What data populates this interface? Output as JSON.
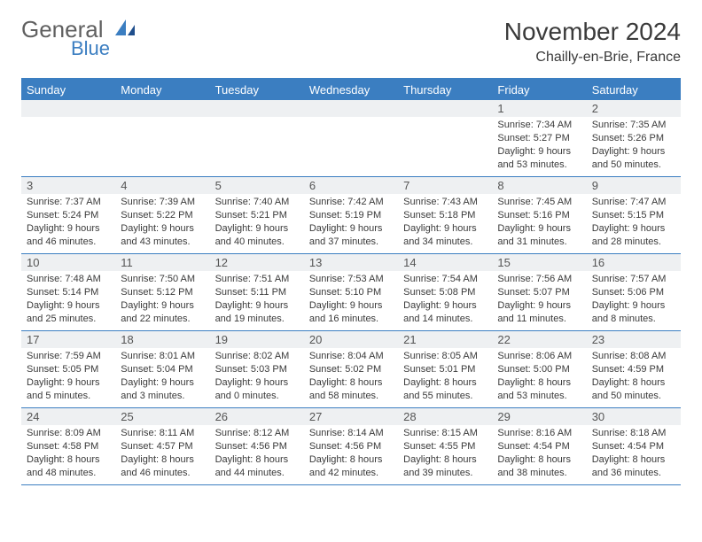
{
  "brand": {
    "line1": "General",
    "line2": "Blue"
  },
  "title": "November 2024",
  "location": "Chailly-en-Brie, France",
  "colors": {
    "accent": "#3b7ec1",
    "header_bg": "#3b7ec1",
    "header_text": "#ffffff",
    "daynum_bg": "#eef0f2",
    "text": "#3a3a3a",
    "rule": "#3b7ec1"
  },
  "dow": [
    "Sunday",
    "Monday",
    "Tuesday",
    "Wednesday",
    "Thursday",
    "Friday",
    "Saturday"
  ],
  "weeks": [
    [
      {
        "n": "",
        "sunrise": "",
        "sunset": "",
        "daylight": ""
      },
      {
        "n": "",
        "sunrise": "",
        "sunset": "",
        "daylight": ""
      },
      {
        "n": "",
        "sunrise": "",
        "sunset": "",
        "daylight": ""
      },
      {
        "n": "",
        "sunrise": "",
        "sunset": "",
        "daylight": ""
      },
      {
        "n": "",
        "sunrise": "",
        "sunset": "",
        "daylight": ""
      },
      {
        "n": "1",
        "sunrise": "Sunrise: 7:34 AM",
        "sunset": "Sunset: 5:27 PM",
        "daylight": "Daylight: 9 hours and 53 minutes."
      },
      {
        "n": "2",
        "sunrise": "Sunrise: 7:35 AM",
        "sunset": "Sunset: 5:26 PM",
        "daylight": "Daylight: 9 hours and 50 minutes."
      }
    ],
    [
      {
        "n": "3",
        "sunrise": "Sunrise: 7:37 AM",
        "sunset": "Sunset: 5:24 PM",
        "daylight": "Daylight: 9 hours and 46 minutes."
      },
      {
        "n": "4",
        "sunrise": "Sunrise: 7:39 AM",
        "sunset": "Sunset: 5:22 PM",
        "daylight": "Daylight: 9 hours and 43 minutes."
      },
      {
        "n": "5",
        "sunrise": "Sunrise: 7:40 AM",
        "sunset": "Sunset: 5:21 PM",
        "daylight": "Daylight: 9 hours and 40 minutes."
      },
      {
        "n": "6",
        "sunrise": "Sunrise: 7:42 AM",
        "sunset": "Sunset: 5:19 PM",
        "daylight": "Daylight: 9 hours and 37 minutes."
      },
      {
        "n": "7",
        "sunrise": "Sunrise: 7:43 AM",
        "sunset": "Sunset: 5:18 PM",
        "daylight": "Daylight: 9 hours and 34 minutes."
      },
      {
        "n": "8",
        "sunrise": "Sunrise: 7:45 AM",
        "sunset": "Sunset: 5:16 PM",
        "daylight": "Daylight: 9 hours and 31 minutes."
      },
      {
        "n": "9",
        "sunrise": "Sunrise: 7:47 AM",
        "sunset": "Sunset: 5:15 PM",
        "daylight": "Daylight: 9 hours and 28 minutes."
      }
    ],
    [
      {
        "n": "10",
        "sunrise": "Sunrise: 7:48 AM",
        "sunset": "Sunset: 5:14 PM",
        "daylight": "Daylight: 9 hours and 25 minutes."
      },
      {
        "n": "11",
        "sunrise": "Sunrise: 7:50 AM",
        "sunset": "Sunset: 5:12 PM",
        "daylight": "Daylight: 9 hours and 22 minutes."
      },
      {
        "n": "12",
        "sunrise": "Sunrise: 7:51 AM",
        "sunset": "Sunset: 5:11 PM",
        "daylight": "Daylight: 9 hours and 19 minutes."
      },
      {
        "n": "13",
        "sunrise": "Sunrise: 7:53 AM",
        "sunset": "Sunset: 5:10 PM",
        "daylight": "Daylight: 9 hours and 16 minutes."
      },
      {
        "n": "14",
        "sunrise": "Sunrise: 7:54 AM",
        "sunset": "Sunset: 5:08 PM",
        "daylight": "Daylight: 9 hours and 14 minutes."
      },
      {
        "n": "15",
        "sunrise": "Sunrise: 7:56 AM",
        "sunset": "Sunset: 5:07 PM",
        "daylight": "Daylight: 9 hours and 11 minutes."
      },
      {
        "n": "16",
        "sunrise": "Sunrise: 7:57 AM",
        "sunset": "Sunset: 5:06 PM",
        "daylight": "Daylight: 9 hours and 8 minutes."
      }
    ],
    [
      {
        "n": "17",
        "sunrise": "Sunrise: 7:59 AM",
        "sunset": "Sunset: 5:05 PM",
        "daylight": "Daylight: 9 hours and 5 minutes."
      },
      {
        "n": "18",
        "sunrise": "Sunrise: 8:01 AM",
        "sunset": "Sunset: 5:04 PM",
        "daylight": "Daylight: 9 hours and 3 minutes."
      },
      {
        "n": "19",
        "sunrise": "Sunrise: 8:02 AM",
        "sunset": "Sunset: 5:03 PM",
        "daylight": "Daylight: 9 hours and 0 minutes."
      },
      {
        "n": "20",
        "sunrise": "Sunrise: 8:04 AM",
        "sunset": "Sunset: 5:02 PM",
        "daylight": "Daylight: 8 hours and 58 minutes."
      },
      {
        "n": "21",
        "sunrise": "Sunrise: 8:05 AM",
        "sunset": "Sunset: 5:01 PM",
        "daylight": "Daylight: 8 hours and 55 minutes."
      },
      {
        "n": "22",
        "sunrise": "Sunrise: 8:06 AM",
        "sunset": "Sunset: 5:00 PM",
        "daylight": "Daylight: 8 hours and 53 minutes."
      },
      {
        "n": "23",
        "sunrise": "Sunrise: 8:08 AM",
        "sunset": "Sunset: 4:59 PM",
        "daylight": "Daylight: 8 hours and 50 minutes."
      }
    ],
    [
      {
        "n": "24",
        "sunrise": "Sunrise: 8:09 AM",
        "sunset": "Sunset: 4:58 PM",
        "daylight": "Daylight: 8 hours and 48 minutes."
      },
      {
        "n": "25",
        "sunrise": "Sunrise: 8:11 AM",
        "sunset": "Sunset: 4:57 PM",
        "daylight": "Daylight: 8 hours and 46 minutes."
      },
      {
        "n": "26",
        "sunrise": "Sunrise: 8:12 AM",
        "sunset": "Sunset: 4:56 PM",
        "daylight": "Daylight: 8 hours and 44 minutes."
      },
      {
        "n": "27",
        "sunrise": "Sunrise: 8:14 AM",
        "sunset": "Sunset: 4:56 PM",
        "daylight": "Daylight: 8 hours and 42 minutes."
      },
      {
        "n": "28",
        "sunrise": "Sunrise: 8:15 AM",
        "sunset": "Sunset: 4:55 PM",
        "daylight": "Daylight: 8 hours and 39 minutes."
      },
      {
        "n": "29",
        "sunrise": "Sunrise: 8:16 AM",
        "sunset": "Sunset: 4:54 PM",
        "daylight": "Daylight: 8 hours and 38 minutes."
      },
      {
        "n": "30",
        "sunrise": "Sunrise: 8:18 AM",
        "sunset": "Sunset: 4:54 PM",
        "daylight": "Daylight: 8 hours and 36 minutes."
      }
    ]
  ]
}
